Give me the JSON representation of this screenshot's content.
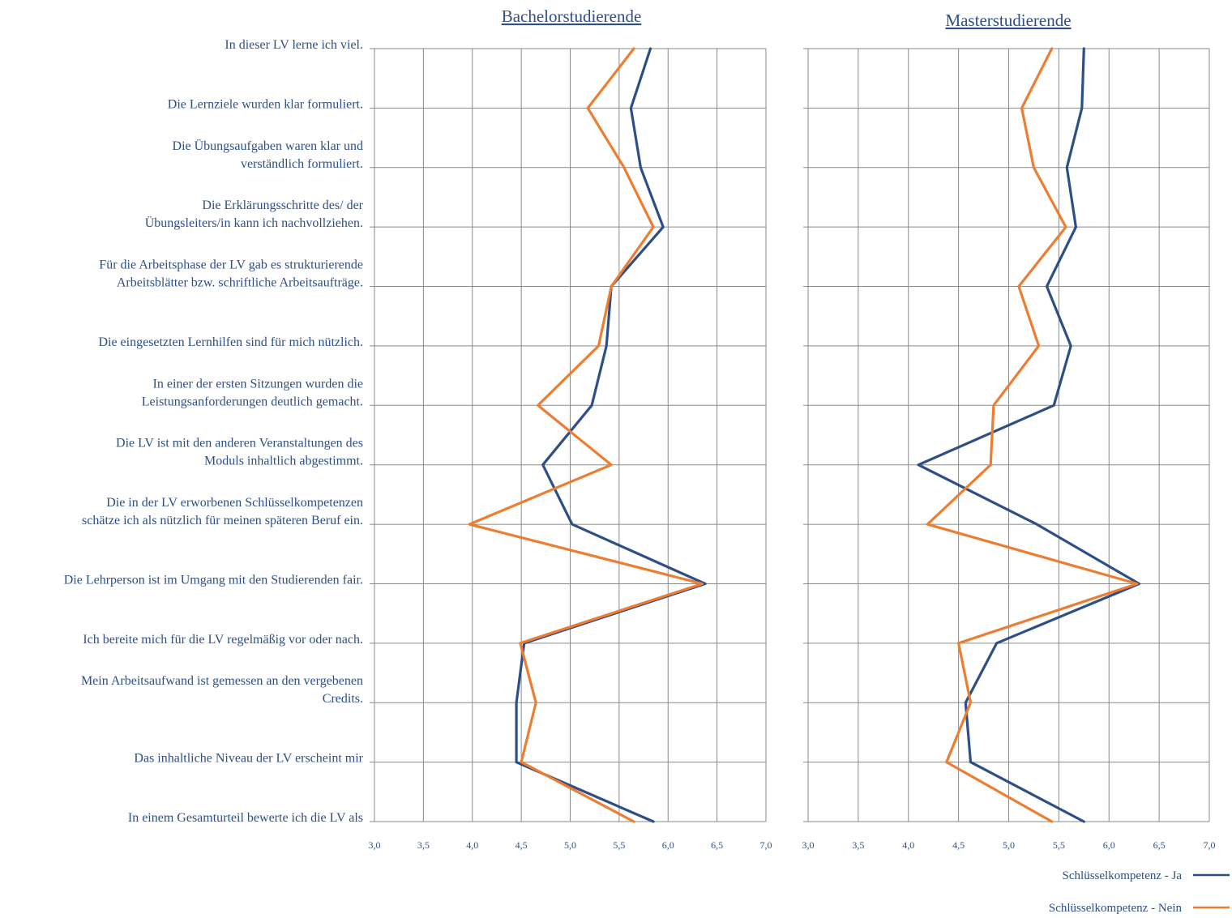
{
  "chart_data": [
    {
      "type": "line",
      "title": "Bachelorstudierende",
      "xlim": [
        3.0,
        7.0
      ],
      "x_ticks": [
        "3,0",
        "3,5",
        "4,0",
        "4,5",
        "5,0",
        "5,5",
        "6,0",
        "6,5",
        "7,0"
      ],
      "grid": true,
      "categories": [
        "In dieser LV lerne ich viel.",
        "Die Lernziele wurden klar formuliert.",
        "Die Übungsaufgaben waren klar und verständlich formuliert.",
        "Die Erklärungsschritte des/ der Übungsleiters/in kann ich nachvollziehen.",
        "Für die Arbeitsphase der LV gab es strukturierende Arbeitsblätter bzw. schriftliche Arbeitsaufträge.",
        "Die eingesetzten Lernhilfen sind für mich nützlich.",
        "In einer der ersten Sitzungen wurden die Leistungsanforderungen deutlich gemacht.",
        "Die LV ist mit den anderen Veranstaltungen des Moduls inhaltlich abgestimmt.",
        "Die in der LV erworbenen Schlüsselkompetenzen schätze ich als nützlich für meinen späteren Beruf ein.",
        "Die Lehrperson ist im Umgang mit den Studierenden fair.",
        "Ich bereite mich für die LV regelmäßig vor oder nach.",
        "Mein Arbeitsaufwand ist gemessen an den vergebenen Credits.",
        "Das inhaltliche Niveau der LV erscheint mir",
        "In einem Gesamturteil bewerte ich die LV als"
      ],
      "series": [
        {
          "name": "Schlüsselkompetenz - Ja",
          "color": "#2e4f86",
          "values": [
            5.82,
            5.62,
            5.72,
            5.95,
            5.42,
            5.37,
            5.22,
            4.72,
            5.02,
            6.38,
            4.53,
            4.45,
            4.45,
            5.85
          ]
        },
        {
          "name": "Schlüsselkompetenz - Nein",
          "color": "#ed7d31",
          "values": [
            5.65,
            5.18,
            5.55,
            5.85,
            5.42,
            5.29,
            4.67,
            5.42,
            3.97,
            6.35,
            4.49,
            4.65,
            4.5,
            5.65
          ]
        }
      ]
    },
    {
      "type": "line",
      "title": "Masterstudierende",
      "xlim": [
        3.0,
        7.0
      ],
      "x_ticks": [
        "3,0",
        "3,5",
        "4,0",
        "4,5",
        "5,0",
        "5,5",
        "6,0",
        "6,5",
        "7,0"
      ],
      "grid": true,
      "series": [
        {
          "name": "Schlüsselkompetenz - Ja",
          "color": "#2e4f86",
          "values": [
            5.75,
            5.73,
            5.58,
            5.67,
            5.38,
            5.62,
            5.45,
            4.1,
            5.28,
            6.3,
            4.88,
            4.57,
            4.62,
            5.75
          ]
        },
        {
          "name": "Schlüsselkompetenz - Nein",
          "color": "#ed7d31",
          "values": [
            5.43,
            5.13,
            5.25,
            5.57,
            5.1,
            5.3,
            4.85,
            4.82,
            4.19,
            6.28,
            4.5,
            4.62,
            4.38,
            5.43
          ]
        }
      ]
    }
  ],
  "question_lines": [
    [
      "In dieser LV lerne ich viel."
    ],
    [
      "Die Lernziele wurden klar formuliert."
    ],
    [
      "Die Übungsaufgaben  waren klar und",
      "verständlich formuliert."
    ],
    [
      "Die Erklärungsschritte des/ der",
      "Übungsleiters/in kann ich nachvollziehen."
    ],
    [
      "Für die Arbeitsphase der LV gab es strukturierende",
      "Arbeitsblätter bzw.  schriftliche Arbeitsaufträge."
    ],
    [
      "Die eingesetzten Lernhilfen sind für mich nützlich."
    ],
    [
      "In einer der ersten Sitzungen wurden die",
      "Leistungsanforderungen deutlich gemacht."
    ],
    [
      "Die LV ist mit den anderen Veranstaltungen des",
      "Moduls inhaltlich abgestimmt."
    ],
    [
      "Die in der LV erworbenen Schlüsselkompetenzen",
      "schätze ich als nützlich für meinen späteren Beruf ein."
    ],
    [
      "Die Lehrperson ist im Umgang mit den Studierenden fair."
    ],
    [
      "Ich bereite mich für die LV regelmäßig vor oder nach."
    ],
    [
      "Mein Arbeitsaufwand ist gemessen an den vergebenen",
      "Credits."
    ],
    [
      "Das inhaltliche Niveau der LV erscheint mir"
    ],
    [
      "In einem Gesamturteil bewerte ich die LV als"
    ]
  ],
  "legend": {
    "placement": "bottom-right",
    "items": [
      {
        "label": "Schlüsselkompetenz - Ja",
        "color": "#2e4f86"
      },
      {
        "label": "Schlüsselkompetenz - Nein",
        "color": "#ed7d31"
      }
    ]
  }
}
